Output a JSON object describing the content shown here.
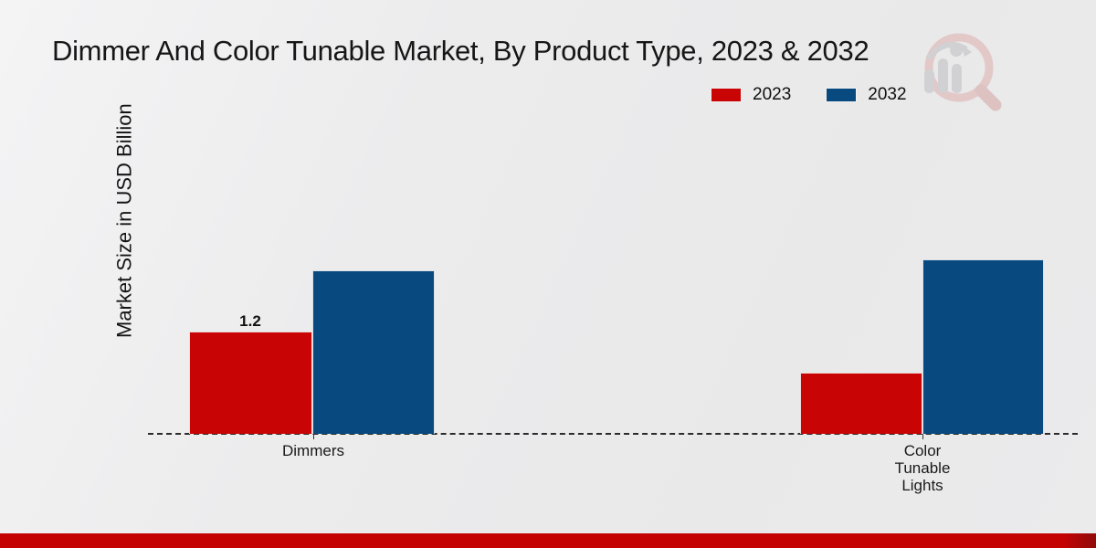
{
  "page": {
    "title": "Dimmer And Color Tunable Market, By Product Type, 2023 & 2032"
  },
  "axes": {
    "y_label": "Market Size in USD Billion"
  },
  "footer": {
    "bar_color": "#c40202",
    "bar_edge_color": "#8f0b0b"
  },
  "watermark": {
    "name": "market-research-magnifier-logo",
    "gray": "#cdcdd1",
    "pink": "#e2c3c3"
  },
  "chart_data": {
    "type": "bar",
    "title": "Dimmer And Color Tunable Market, By Product Type, 2023 & 2032",
    "xlabel": "",
    "ylabel": "Market Size in USD Billion",
    "categories": [
      "Dimmers",
      "Color Tunable Lights"
    ],
    "series": [
      {
        "name": "2023",
        "color": "#c90404",
        "values": [
          1.2,
          0.72
        ]
      },
      {
        "name": "2032",
        "color": "#084a80",
        "values": [
          1.92,
          2.05
        ]
      }
    ],
    "bar_value_labels": [
      [
        "1.2",
        ""
      ],
      [
        "",
        ""
      ]
    ],
    "ylim": [
      0,
      2.5
    ],
    "grid": false,
    "y_ticks_visible": false,
    "legend_position": "top-right",
    "baseline_style": "dashed"
  }
}
